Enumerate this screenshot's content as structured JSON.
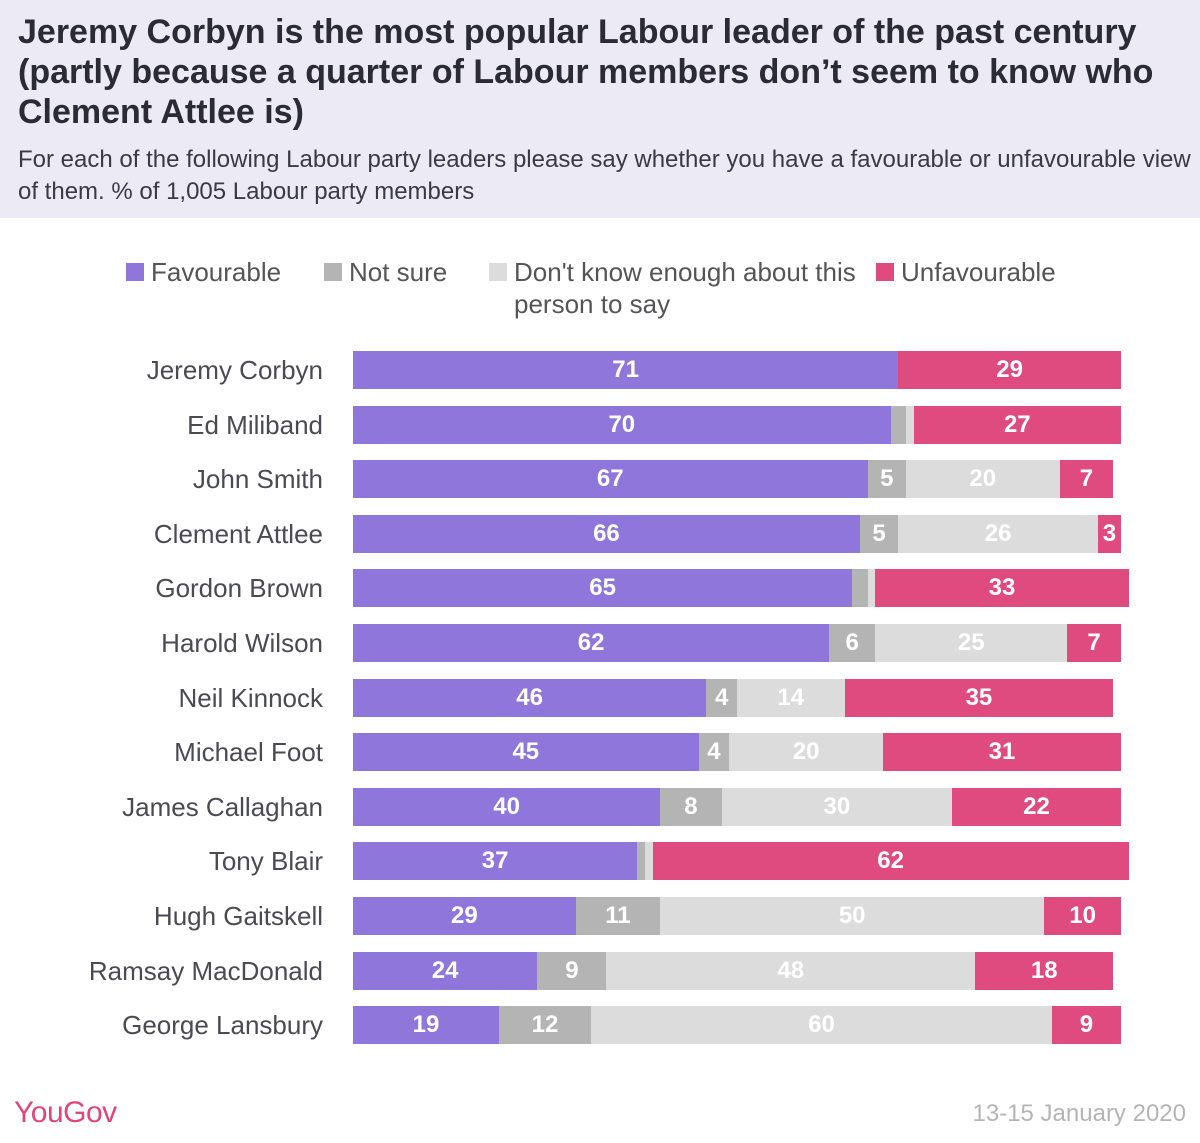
{
  "header": {
    "title": "Jeremy Corbyn is the most popular Labour leader of the past century (partly because a quarter of Labour members don’t seem to know who Clement Attlee is)",
    "subtitle": "For each of the following Labour party leaders please say whether you have a favourable or unfavourable view of them. % of 1,005 Labour party members"
  },
  "legend": [
    {
      "label": "Favourable",
      "color": "#8E76DA"
    },
    {
      "label": "Not sure",
      "color": "#B4B4B4"
    },
    {
      "label": "Don't know enough about this person to say",
      "color": "#DCDCDC"
    },
    {
      "label": "Unfavourable",
      "color": "#DF4B7E"
    }
  ],
  "chart_data": {
    "type": "bar",
    "orientation": "horizontal",
    "stacked": true,
    "xlim": [
      0,
      100
    ],
    "categories": [
      "Jeremy Corbyn",
      "Ed Miliband",
      "John Smith",
      "Clement Attlee",
      "Gordon Brown",
      "Harold Wilson",
      "Neil Kinnock",
      "Michael Foot",
      "James Callaghan",
      "Tony Blair",
      "Hugh Gaitskell",
      "Ramsay MacDonald",
      "George Lansbury"
    ],
    "series": [
      {
        "name": "Favourable",
        "color": "#8E76DA",
        "values": [
          71,
          70,
          67,
          66,
          65,
          62,
          46,
          45,
          40,
          37,
          29,
          24,
          19
        ]
      },
      {
        "name": "Not sure",
        "color": "#B4B4B4",
        "values": [
          0,
          2,
          5,
          5,
          2,
          6,
          4,
          4,
          8,
          1,
          11,
          9,
          12
        ]
      },
      {
        "name": "Don't know enough about this person to say",
        "color": "#DCDCDC",
        "values": [
          0,
          1,
          20,
          26,
          1,
          25,
          14,
          20,
          30,
          1,
          50,
          48,
          60
        ]
      },
      {
        "name": "Unfavourable",
        "color": "#DF4B7E",
        "values": [
          29,
          27,
          7,
          3,
          33,
          7,
          35,
          31,
          22,
          62,
          10,
          18,
          9
        ]
      }
    ],
    "data_labels": [
      [
        "71",
        "",
        "",
        "29"
      ],
      [
        "70",
        "",
        "",
        "27"
      ],
      [
        "67",
        "5",
        "20",
        "7"
      ],
      [
        "66",
        "5",
        "26",
        "3"
      ],
      [
        "65",
        "",
        "",
        "33"
      ],
      [
        "62",
        "6",
        "25",
        "7"
      ],
      [
        "46",
        "4",
        "14",
        "35"
      ],
      [
        "45",
        "4",
        "20",
        "31"
      ],
      [
        "40",
        "8",
        "30",
        "22"
      ],
      [
        "37",
        "",
        "",
        "62"
      ],
      [
        "29",
        "11",
        "50",
        "10"
      ],
      [
        "24",
        "9",
        "48",
        "18"
      ],
      [
        "19",
        "12",
        "60",
        "9"
      ]
    ],
    "grid": false,
    "legend_position": "top"
  },
  "footer": {
    "logo": "YouGov",
    "date": "13-15 January 2020"
  }
}
